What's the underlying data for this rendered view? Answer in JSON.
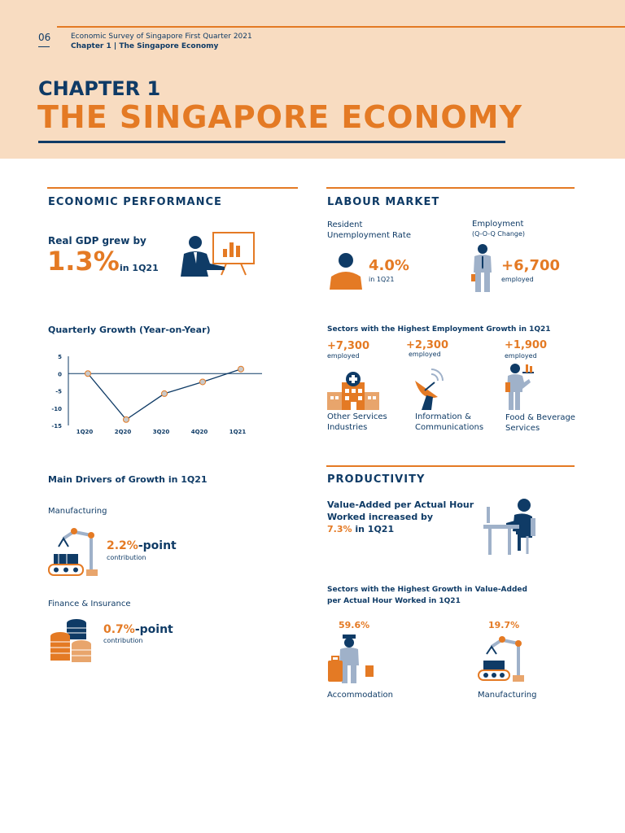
{
  "header": {
    "page_number": "06",
    "survey_title": "Economic Survey of Singapore First Quarter 2021",
    "chapter_crumb": "Chapter 1 | The Singapore Economy",
    "chapter_label": "CHAPTER 1",
    "chapter_title": "THE SINGAPORE ECONOMY"
  },
  "economic_performance": {
    "title": "ECONOMIC PERFORMANCE",
    "gdp_lead": "Real GDP grew by",
    "gdp_value": "1.3%",
    "gdp_period": "in 1Q21",
    "chart_title": "Quarterly Growth (Year-on-Year)"
  },
  "chart_data": {
    "type": "line",
    "title": "Quarterly Growth (Year-on-Year)",
    "categories": [
      "1Q20",
      "2Q20",
      "3Q20",
      "4Q20",
      "1Q21"
    ],
    "values": [
      0.0,
      -13.3,
      -5.8,
      -2.4,
      1.3
    ],
    "ylim": [
      -15,
      5
    ],
    "yticks": [
      "5",
      "0",
      "-5",
      "-10",
      "-15"
    ],
    "xlabel": "",
    "ylabel": ""
  },
  "drivers": {
    "title": "Main Drivers of Growth in 1Q21",
    "manufacturing_label": "Manufacturing",
    "manufacturing_value": "2.2%",
    "manufacturing_suffix": "-point",
    "manufacturing_note": "contribution",
    "finance_label": "Finance & Insurance",
    "finance_value": "0.7%",
    "finance_suffix": "-point",
    "finance_note": "contribution"
  },
  "labour": {
    "title": "LABOUR MARKET",
    "unemp_label_1": "Resident",
    "unemp_label_2": "Unemployment Rate",
    "unemp_value": "4.0%",
    "unemp_period": "in 1Q21",
    "emp_label": "Employment",
    "emp_sub": "(Q-O-Q Change)",
    "emp_value": "+6,700",
    "emp_note": "employed",
    "sectors_title": "Sectors with the Highest Employment Growth in 1Q21",
    "sectors": [
      {
        "value": "+7,300",
        "note": "employed",
        "name_1": "Other Services",
        "name_2": "Industries"
      },
      {
        "value": "+2,300",
        "note": "employed",
        "name_1": "Information &",
        "name_2": "Communications"
      },
      {
        "value": "+1,900",
        "note": "employed",
        "name_1": "Food & Beverage",
        "name_2": "Services"
      }
    ]
  },
  "productivity": {
    "title": "PRODUCTIVITY",
    "line_1": "Value-Added per Actual Hour",
    "line_2": "Worked increased by",
    "value": "7.3%",
    "period": "in 1Q21",
    "sectors_title_1": "Sectors with the Highest Growth in Value-Added",
    "sectors_title_2": "per Actual Hour Worked in 1Q21",
    "sectors": [
      {
        "value": "59.6%",
        "name": "Accommodation"
      },
      {
        "value": "19.7%",
        "name": "Manufacturing"
      }
    ]
  },
  "colors": {
    "navy": "#0f3b66",
    "orange": "#e47a24",
    "peach": "#f8dcc1",
    "grey": "#9fb1c9"
  }
}
